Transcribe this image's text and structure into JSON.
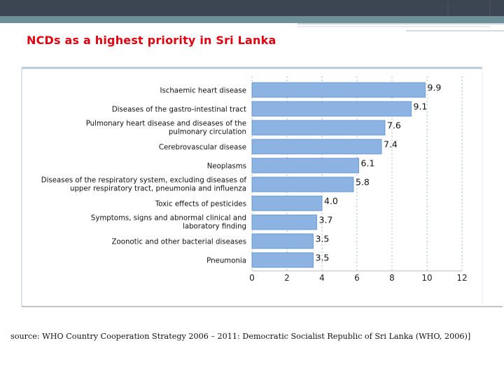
{
  "slide": {
    "title": "NCDs as a highest priority in Sri Lanka",
    "source": "source: WHO Country Cooperation Strategy 2006 – 2011: Democratic Socialist Republic of Sri Lanka (WHO, 2006)]"
  },
  "colors": {
    "title": "#e0000f",
    "bar": "#8db3e2",
    "bar_edge": "#5b8fd0",
    "header": "#3b4652",
    "accent": "#6d8f97"
  },
  "chart_data": {
    "type": "bar",
    "orientation": "horizontal",
    "categories": [
      [
        "Ischaemic heart disease"
      ],
      [
        "Diseases of the gastro-intestinal tract"
      ],
      [
        "Pulmonary heart disease and diseases of the",
        "pulmonary circulation"
      ],
      [
        "Cerebrovascular disease"
      ],
      [
        "Neoplasms"
      ],
      [
        "Diseases of the respiratory system, excluding diseases of",
        "upper respiratory tract, pneumonia and influenza"
      ],
      [
        "Toxic effects of pesticides"
      ],
      [
        "Symptoms, signs and abnormal clinical and",
        "laboratory finding"
      ],
      [
        "Zoonotic and other bacterial diseases"
      ],
      [
        "Pneumonia"
      ]
    ],
    "values": [
      9.9,
      9.1,
      7.6,
      7.4,
      6.1,
      5.8,
      4.0,
      3.7,
      3.5,
      3.5
    ],
    "value_labels": [
      "9.9",
      "9.1",
      "7.6",
      "7.4",
      "6.1",
      "5.8",
      "4.0",
      "3.7",
      "3.5",
      "3.5"
    ],
    "xticks": [
      "0",
      "2",
      "4",
      "6",
      "8",
      "10",
      "12"
    ],
    "xlim": [
      0,
      12
    ],
    "grid": "vertical dashed",
    "legend": "none"
  }
}
